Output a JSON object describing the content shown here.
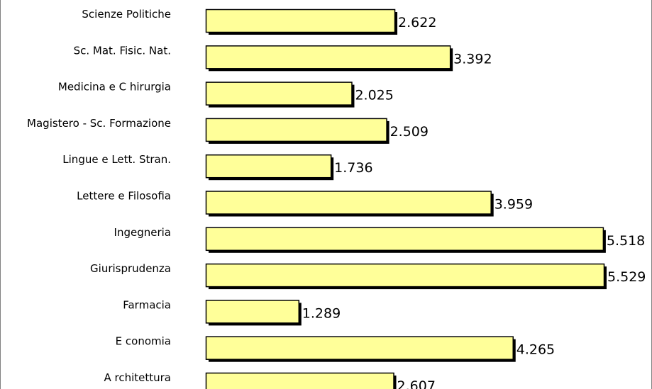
{
  "chart_data": {
    "type": "bar",
    "orientation": "horizontal",
    "categories": [
      "Scienze Politiche",
      "Sc. Mat. Fisic. Nat.",
      "Medicina e C hirurgia",
      "Magistero - Sc. Formazione",
      "Lingue e Lett. Stran.",
      "Lettere e Filosofia",
      "Ingegneria",
      "Giurisprudenza",
      "Farmacia",
      "E conomia",
      "A rchitettura"
    ],
    "values": [
      2622,
      3392,
      2025,
      2509,
      1736,
      3959,
      5518,
      5529,
      1289,
      4265,
      2607
    ],
    "value_labels": [
      "2.622",
      "3.392",
      "2.025",
      "2.509",
      "1.736",
      "3.959",
      "5.518",
      "5.529",
      "1.289",
      "4.265",
      "2.607"
    ],
    "title": "",
    "xlabel": "",
    "ylabel": "",
    "xlim": [
      0,
      5529
    ],
    "grid": false,
    "legend": "none",
    "colors": {
      "bar_fill": "#ffff99",
      "bar_border": "#000000",
      "bar_shadow": "#000000",
      "frame": "#808080"
    }
  }
}
